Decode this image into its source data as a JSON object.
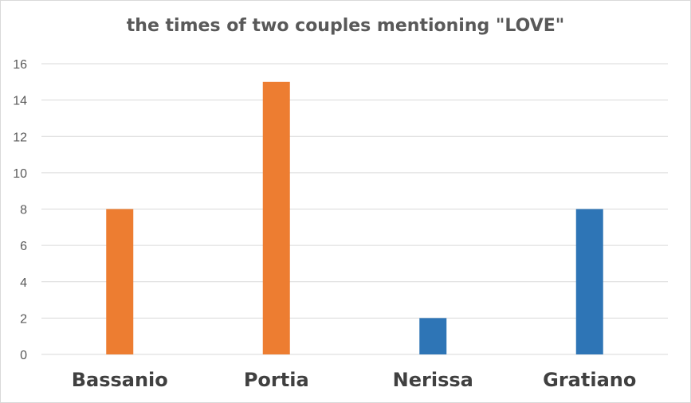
{
  "chart_data": {
    "type": "bar",
    "title": "the times of two couples mentioning \"LOVE\"",
    "categories": [
      "Bassanio",
      "Portia",
      "Nerissa",
      "Gratiano"
    ],
    "values": [
      8,
      15,
      2,
      8
    ],
    "bar_colors": [
      "#ed7d31",
      "#ed7d31",
      "#2e75b6",
      "#2e75b6"
    ],
    "xlabel": "",
    "ylabel": "",
    "ylim": [
      0,
      16
    ],
    "yticks": [
      0,
      2,
      4,
      6,
      8,
      10,
      12,
      14,
      16
    ],
    "grid": true,
    "gridline_color": "#d9d9d9",
    "legend": "none"
  }
}
